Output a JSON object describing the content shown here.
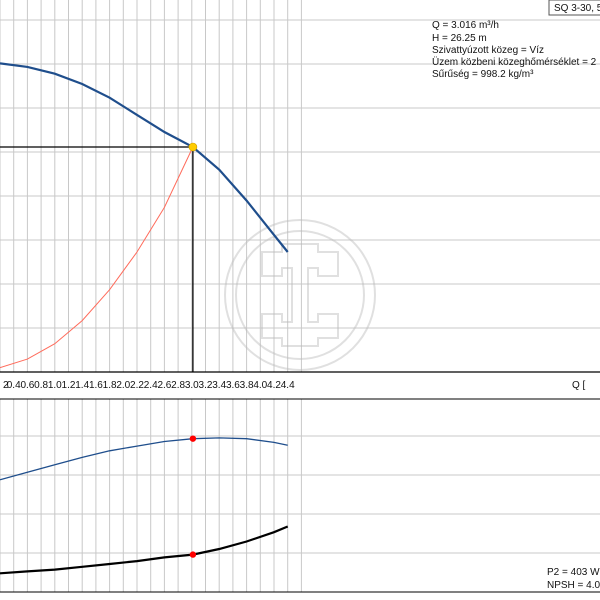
{
  "header": {
    "title_box": "SQ 3-30, 5",
    "info_lines": [
      "Q = 3.016 m³/h",
      "H = 26.25 m",
      "Szivattyúzott közeg = Víz",
      "Üzem közbeni közeghőmérséklet = 2",
      "Sűrűség = 998.2 kg/m³"
    ]
  },
  "footer_info": [
    "P2 = 403 W",
    "NPSH = 4.0"
  ],
  "colors": {
    "head_curve": "#1f4e8c",
    "system_curve": "#ff6b5b",
    "power_curve": "#000000",
    "efficiency_curve": "#1f4e8c",
    "duty_point": "#ffcc00",
    "marker": "#ff0000",
    "grid": "#c8c8c8"
  },
  "watermark": "logo-watermark",
  "chart_data": [
    {
      "type": "line",
      "xlabel": "Q [",
      "x_ticks": [
        "2",
        "0.4",
        "0.6",
        "0.8",
        "1.0",
        "1.2",
        "1.4",
        "1.6",
        "1.8",
        "2.0",
        "2.2",
        "2.4",
        "2.6",
        "2.8",
        "3.0",
        "3.2",
        "3.4",
        "3.6",
        "3.8",
        "4.0",
        "4.2",
        "4.4"
      ],
      "xlim": [
        0.2,
        4.6
      ],
      "ylim": [
        0,
        42
      ],
      "series": [
        {
          "x": [
            0.2,
            0.6,
            1.0,
            1.4,
            1.8,
            2.2,
            2.6,
            3.016,
            3.4,
            3.8,
            4.2,
            4.4
          ],
          "y": [
            36,
            35.6,
            34.8,
            33.6,
            32,
            30,
            28,
            26.25,
            23.6,
            20,
            16,
            14
          ]
        },
        {
          "x": [
            0.2,
            0.6,
            1.0,
            1.4,
            1.8,
            2.2,
            2.6,
            3.016
          ],
          "y": [
            0.5,
            1.5,
            3.3,
            6,
            9.6,
            14,
            19.2,
            26.25
          ]
        }
      ],
      "duty_point": {
        "x": 3.016,
        "y": 26.25
      }
    },
    {
      "type": "line",
      "xlim": [
        0.2,
        4.6
      ],
      "ylim": [
        0,
        100
      ],
      "series": [
        {
          "x": [
            0.2,
            0.6,
            1.0,
            1.4,
            1.8,
            2.2,
            2.6,
            3.016,
            3.4,
            3.8,
            4.2,
            4.4
          ],
          "y": [
            60,
            64,
            68,
            72,
            75.5,
            78,
            80.5,
            82,
            82.4,
            82,
            80,
            78.5
          ]
        },
        {
          "x": [
            0.2,
            0.6,
            1.0,
            1.4,
            1.8,
            2.2,
            2.6,
            3.016,
            3.4,
            3.8,
            4.2,
            4.4
          ],
          "y": [
            10,
            11,
            12,
            13.5,
            15,
            16.5,
            18.5,
            20,
            23,
            27,
            32,
            35
          ]
        }
      ],
      "markers": [
        {
          "x": 3.016,
          "y": 82
        },
        {
          "x": 3.016,
          "y": 20
        }
      ]
    }
  ]
}
